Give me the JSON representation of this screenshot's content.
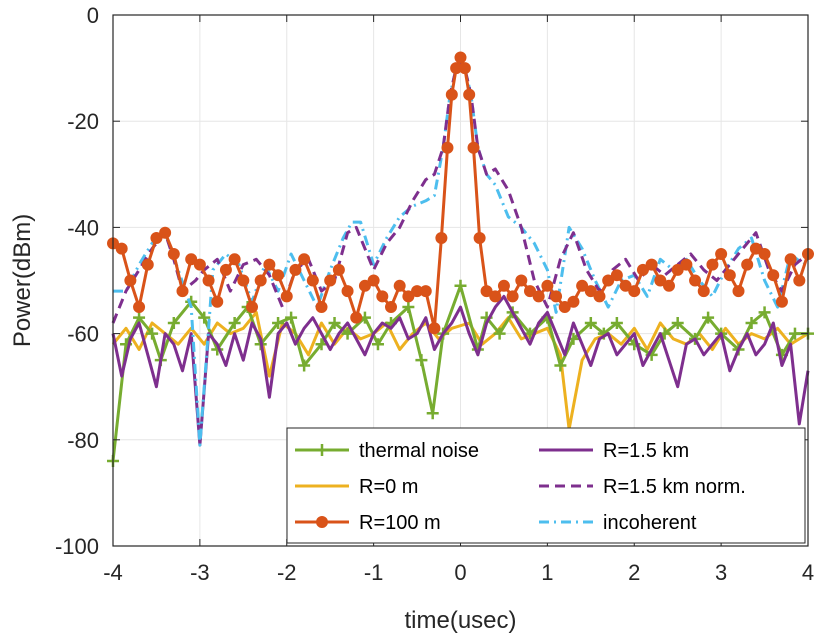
{
  "chart_data": {
    "type": "line",
    "xlabel": "time(usec)",
    "ylabel": "Power(dBm)",
    "xlim": [
      -4,
      4
    ],
    "ylim": [
      -100,
      0
    ],
    "xticks": [
      "-4",
      "-3",
      "-2",
      "-1",
      "0",
      "1",
      "2",
      "3",
      "4"
    ],
    "yticks": [
      "0",
      "-20",
      "-40",
      "-60",
      "-80",
      "-100"
    ],
    "grid": true,
    "legend_position": "bottom-right",
    "series": [
      {
        "name": "thermal noise",
        "color": "#77AC30",
        "style": "solid",
        "marker": "plus",
        "x": [
          -4,
          -3.85,
          -3.7,
          -3.55,
          -3.45,
          -3.3,
          -3.1,
          -2.95,
          -2.8,
          -2.6,
          -2.45,
          -2.3,
          -2.1,
          -1.95,
          -1.8,
          -1.6,
          -1.45,
          -1.3,
          -1.1,
          -0.95,
          -0.8,
          -0.6,
          -0.45,
          -0.32,
          -0.2,
          0,
          0.2,
          0.3,
          0.45,
          0.6,
          0.8,
          1.0,
          1.15,
          1.3,
          1.5,
          1.65,
          1.8,
          2.0,
          2.2,
          2.35,
          2.5,
          2.7,
          2.85,
          3.0,
          3.2,
          3.35,
          3.5,
          3.7,
          3.85,
          4
        ],
        "y": [
          -84,
          -62,
          -57,
          -60,
          -65,
          -58,
          -54,
          -57,
          -63,
          -58,
          -55,
          -62,
          -58,
          -57,
          -66,
          -62,
          -58,
          -60,
          -57,
          -62,
          -58,
          -55,
          -65,
          -75,
          -60,
          -51,
          -63,
          -57,
          -60,
          -56,
          -60,
          -57,
          -66,
          -61,
          -58,
          -60,
          -58,
          -62,
          -64,
          -60,
          -58,
          -61,
          -57,
          -60,
          -63,
          -58,
          -56,
          -64,
          -60,
          -60
        ]
      },
      {
        "name": "R=0 m",
        "color": "#EDB120",
        "style": "solid",
        "marker": "none",
        "x": [
          -4,
          -3.85,
          -3.7,
          -3.55,
          -3.4,
          -3.25,
          -3.1,
          -2.95,
          -2.8,
          -2.65,
          -2.5,
          -2.35,
          -2.2,
          -2.05,
          -1.9,
          -1.75,
          -1.6,
          -1.45,
          -1.3,
          -1.15,
          -1.0,
          -0.85,
          -0.7,
          -0.55,
          -0.4,
          -0.25,
          -0.1,
          0.1,
          0.25,
          0.4,
          0.55,
          0.7,
          0.85,
          1.0,
          1.15,
          1.25,
          1.4,
          1.55,
          1.7,
          1.85,
          2.0,
          2.15,
          2.3,
          2.45,
          2.6,
          2.75,
          2.9,
          3.05,
          3.2,
          3.35,
          3.5,
          3.65,
          3.8,
          4
        ],
        "y": [
          -62,
          -59,
          -63,
          -58,
          -60,
          -62,
          -59,
          -62,
          -58,
          -60,
          -59,
          -56,
          -68,
          -58,
          -60,
          -64,
          -58,
          -62,
          -59,
          -61,
          -60,
          -58,
          -63,
          -60,
          -58,
          -61,
          -59,
          -58,
          -62,
          -60,
          -57,
          -61,
          -60,
          -59,
          -64,
          -78,
          -65,
          -61,
          -60,
          -62,
          -59,
          -63,
          -58,
          -61,
          -62,
          -60,
          -63,
          -59,
          -62,
          -60,
          -61,
          -59,
          -62,
          -60
        ]
      },
      {
        "name": "R=100 m",
        "color": "#D95319",
        "style": "solid",
        "marker": "circle",
        "x": [
          -4,
          -3.9,
          -3.8,
          -3.7,
          -3.6,
          -3.5,
          -3.4,
          -3.3,
          -3.2,
          -3.1,
          -3.0,
          -2.9,
          -2.8,
          -2.7,
          -2.6,
          -2.5,
          -2.4,
          -2.3,
          -2.2,
          -2.1,
          -2.0,
          -1.9,
          -1.8,
          -1.7,
          -1.6,
          -1.5,
          -1.4,
          -1.3,
          -1.2,
          -1.1,
          -1.0,
          -0.9,
          -0.8,
          -0.7,
          -0.6,
          -0.5,
          -0.4,
          -0.3,
          -0.22,
          -0.15,
          -0.1,
          -0.05,
          0,
          0.05,
          0.1,
          0.15,
          0.22,
          0.3,
          0.4,
          0.5,
          0.6,
          0.7,
          0.8,
          0.9,
          1.0,
          1.1,
          1.2,
          1.3,
          1.4,
          1.5,
          1.6,
          1.7,
          1.8,
          1.9,
          2.0,
          2.1,
          2.2,
          2.3,
          2.4,
          2.5,
          2.6,
          2.7,
          2.8,
          2.9,
          3.0,
          3.1,
          3.2,
          3.3,
          3.4,
          3.5,
          3.6,
          3.7,
          3.8,
          3.9,
          4
        ],
        "y": [
          -43,
          -44,
          -50,
          -55,
          -47,
          -42,
          -41,
          -45,
          -52,
          -46,
          -47,
          -50,
          -54,
          -48,
          -46,
          -50,
          -55,
          -50,
          -47,
          -49,
          -53,
          -48,
          -46,
          -50,
          -55,
          -50,
          -48,
          -52,
          -57,
          -51,
          -50,
          -53,
          -55,
          -51,
          -53,
          -52,
          -52,
          -59,
          -42,
          -25,
          -15,
          -10,
          -8,
          -10,
          -15,
          -25,
          -42,
          -52,
          -53,
          -51,
          -53,
          -50,
          -52,
          -53,
          -51,
          -53,
          -55,
          -54,
          -51,
          -52,
          -53,
          -50,
          -49,
          -51,
          -52,
          -48,
          -47,
          -50,
          -51,
          -48,
          -47,
          -50,
          -52,
          -47,
          -45,
          -49,
          -52,
          -47,
          -44,
          -45,
          -49,
          -54,
          -46,
          -50,
          -45
        ]
      },
      {
        "name": "R=1.5 km",
        "color": "#7E2F8E",
        "style": "solid",
        "marker": "none",
        "x": [
          -4,
          -3.9,
          -3.8,
          -3.7,
          -3.6,
          -3.5,
          -3.4,
          -3.3,
          -3.2,
          -3.1,
          -3.0,
          -2.9,
          -2.8,
          -2.7,
          -2.6,
          -2.5,
          -2.4,
          -2.3,
          -2.2,
          -2.1,
          -2.0,
          -1.9,
          -1.8,
          -1.7,
          -1.6,
          -1.5,
          -1.4,
          -1.3,
          -1.2,
          -1.1,
          -1.0,
          -0.9,
          -0.8,
          -0.7,
          -0.6,
          -0.5,
          -0.4,
          -0.3,
          -0.2,
          -0.1,
          0,
          0.1,
          0.2,
          0.3,
          0.4,
          0.5,
          0.6,
          0.7,
          0.8,
          0.9,
          1.0,
          1.1,
          1.2,
          1.3,
          1.4,
          1.5,
          1.6,
          1.7,
          1.8,
          1.9,
          2.0,
          2.1,
          2.2,
          2.3,
          2.4,
          2.5,
          2.6,
          2.7,
          2.8,
          2.9,
          3.0,
          3.1,
          3.2,
          3.3,
          3.4,
          3.5,
          3.6,
          3.7,
          3.8,
          3.9,
          4
        ],
        "y": [
          -60,
          -68,
          -61,
          -58,
          -64,
          -70,
          -60,
          -62,
          -67,
          -60,
          -81,
          -60,
          -62,
          -66,
          -60,
          -65,
          -58,
          -61,
          -72,
          -60,
          -58,
          -62,
          -59,
          -57,
          -60,
          -63,
          -60,
          -58,
          -61,
          -64,
          -60,
          -58,
          -59,
          -57,
          -61,
          -60,
          -57,
          -63,
          -60,
          -58,
          -55,
          -60,
          -64,
          -58,
          -55,
          -53,
          -56,
          -59,
          -62,
          -58,
          -56,
          -60,
          -64,
          -58,
          -62,
          -66,
          -61,
          -60,
          -64,
          -62,
          -60,
          -66,
          -63,
          -60,
          -65,
          -70,
          -62,
          -61,
          -64,
          -62,
          -60,
          -67,
          -63,
          -60,
          -64,
          -62,
          -58,
          -66,
          -62,
          -77,
          -67
        ]
      },
      {
        "name": "R=1.5 km norm.",
        "color": "#7E2F8E",
        "style": "dashed",
        "marker": "none",
        "x": [
          -4,
          -3.85,
          -3.7,
          -3.55,
          -3.4,
          -3.3,
          -3.2,
          -3.05,
          -2.95,
          -2.8,
          -2.65,
          -2.5,
          -2.35,
          -2.2,
          -2.05,
          -1.9,
          -1.75,
          -1.6,
          -1.45,
          -1.3,
          -1.2,
          -1.0,
          -0.85,
          -0.7,
          -0.55,
          -0.4,
          -0.3,
          -0.2,
          -0.12,
          -0.05,
          0,
          0.05,
          0.12,
          0.2,
          0.3,
          0.4,
          0.55,
          0.7,
          0.85,
          1.0,
          1.15,
          1.3,
          1.45,
          1.6,
          1.75,
          1.9,
          2.05,
          2.2,
          2.35,
          2.5,
          2.65,
          2.8,
          2.95,
          3.1,
          3.25,
          3.4,
          3.55,
          3.7,
          3.85,
          4
        ],
        "y": [
          -58,
          -52,
          -48,
          -44,
          -41,
          -46,
          -52,
          -50,
          -48,
          -46,
          -52,
          -47,
          -46,
          -49,
          -55,
          -48,
          -46,
          -52,
          -50,
          -41,
          -40,
          -48,
          -43,
          -40,
          -35,
          -31,
          -30,
          -25,
          -15,
          -10,
          -9,
          -10,
          -15,
          -25,
          -30,
          -29,
          -33,
          -40,
          -50,
          -55,
          -46,
          -41,
          -48,
          -52,
          -48,
          -46,
          -50,
          -47,
          -49,
          -47,
          -45,
          -48,
          -50,
          -47,
          -44,
          -41,
          -48,
          -52,
          -47,
          -45
        ]
      },
      {
        "name": "incoherent",
        "color": "#4DBEEE",
        "style": "dashdot",
        "marker": "none",
        "x": [
          -4,
          -3.85,
          -3.7,
          -3.55,
          -3.4,
          -3.25,
          -3.1,
          -3.0,
          -2.85,
          -2.7,
          -2.55,
          -2.4,
          -2.25,
          -2.1,
          -1.95,
          -1.8,
          -1.65,
          -1.5,
          -1.35,
          -1.25,
          -1.15,
          -1.0,
          -0.85,
          -0.7,
          -0.55,
          -0.4,
          -0.3,
          -0.2,
          -0.12,
          -0.05,
          0,
          0.05,
          0.12,
          0.2,
          0.3,
          0.4,
          0.55,
          0.7,
          0.85,
          1.0,
          1.1,
          1.25,
          1.4,
          1.55,
          1.7,
          1.85,
          2.0,
          2.15,
          2.3,
          2.45,
          2.6,
          2.75,
          2.9,
          3.05,
          3.2,
          3.35,
          3.5,
          3.65,
          3.8,
          3.95,
          4
        ],
        "y": [
          -52,
          -52,
          -47,
          -43,
          -41,
          -48,
          -55,
          -81,
          -48,
          -45,
          -47,
          -54,
          -47,
          -52,
          -45,
          -50,
          -55,
          -48,
          -42,
          -39,
          -39,
          -47,
          -42,
          -38,
          -36,
          -35,
          -34,
          -25,
          -15,
          -10,
          -9,
          -10,
          -15,
          -25,
          -30,
          -32,
          -38,
          -40,
          -43,
          -48,
          -56,
          -40,
          -44,
          -50,
          -55,
          -50,
          -49,
          -53,
          -46,
          -48,
          -46,
          -50,
          -53,
          -48,
          -44,
          -42,
          -50,
          -55,
          -45,
          -47,
          -46
        ]
      }
    ]
  }
}
